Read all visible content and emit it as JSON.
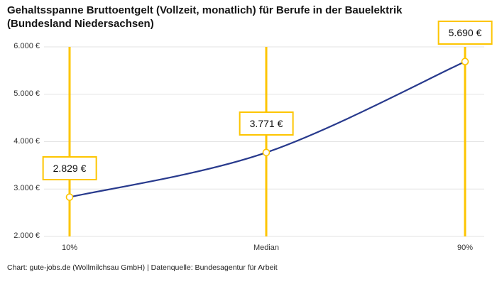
{
  "title_lines": [
    "Gehaltsspanne Bruttoentgelt (Vollzeit, monatlich) für Berufe in der Bauelektrik",
    "(Bundesland Niedersachsen)"
  ],
  "footer": "Chart: gute-jobs.de (Wollmilchsau GmbH) | Datenquelle: Bundesagentur für Arbeit",
  "chart_data": {
    "type": "line",
    "title": "Gehaltsspanne Bruttoentgelt (Vollzeit, monatlich) für Berufe in der Bauelektrik (Bundesland Niedersachsen)",
    "categories": [
      "10%",
      "Median",
      "90%"
    ],
    "values": [
      2829,
      3771,
      5690
    ],
    "value_labels": [
      "2.829 €",
      "3.771 €",
      "5.690 €"
    ],
    "ylim": [
      2000,
      6000
    ],
    "yticks": [
      2000,
      3000,
      4000,
      5000,
      6000
    ],
    "ytick_labels": [
      "2.000 €",
      "3.000 €",
      "4.000 €",
      "5.000 €",
      "6.000 €"
    ],
    "grid": true,
    "legend": "none",
    "colors": {
      "line": "#283a8d",
      "vline": "#fdc500",
      "marker_fill": "#ffffff",
      "marker_stroke": "#fdc500",
      "grid": "#e3e3e3",
      "axis_text": "#333333",
      "title": "#151515"
    }
  }
}
